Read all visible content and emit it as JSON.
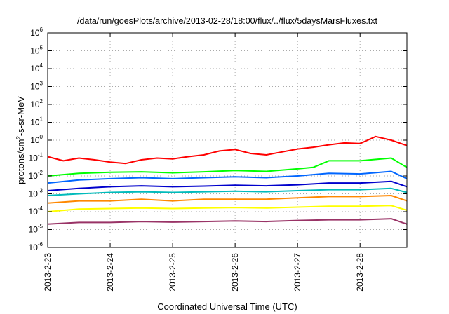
{
  "chart_data": {
    "type": "line",
    "title": "/data/run/goesPlots/archive/2013-02-28/18:00/flux/../flux/5daysMarsFluxes.txt",
    "xlabel": "Coordinated Universal Time (UTC)",
    "ylabel": {
      "base": "protons/cm",
      "sup": "2",
      "rest": "-s-sr-MeV"
    },
    "y_scale": "log",
    "ylim": [
      1e-06,
      1000000.0
    ],
    "y_ticks": [
      {
        "base": "10",
        "exp": "6",
        "value": 1000000.0
      },
      {
        "base": "10",
        "exp": "5",
        "value": 100000.0
      },
      {
        "base": "10",
        "exp": "4",
        "value": 10000.0
      },
      {
        "base": "10",
        "exp": "3",
        "value": 1000.0
      },
      {
        "base": "10",
        "exp": "2",
        "value": 100.0
      },
      {
        "base": "10",
        "exp": "1",
        "value": 10.0
      },
      {
        "base": "10",
        "exp": "0",
        "value": 1.0
      },
      {
        "base": "10",
        "exp": "-1",
        "value": 0.1
      },
      {
        "base": "10",
        "exp": "-2",
        "value": 0.01
      },
      {
        "base": "10",
        "exp": "-3",
        "value": 0.001
      },
      {
        "base": "10",
        "exp": "-4",
        "value": 0.0001
      },
      {
        "base": "10",
        "exp": "-5",
        "value": 1e-05
      },
      {
        "base": "10",
        "exp": "-6",
        "value": 1e-06
      }
    ],
    "x_ticks": [
      "2013-2-23",
      "2013-2-24",
      "2013-2-25",
      "2013-2-26",
      "2013-2-27",
      "2013-2-28"
    ],
    "xlim": [
      "2013-2-23",
      "2013-2-28 18:00"
    ],
    "grid": true,
    "legend": "none",
    "series": [
      {
        "color": "#ff0000",
        "x": [
          "2013-2-23 00:00",
          "2013-2-23 06:00",
          "2013-2-23 12:00",
          "2013-2-23 18:00",
          "2013-2-24 00:00",
          "2013-2-24 06:00",
          "2013-2-24 12:00",
          "2013-2-24 18:00",
          "2013-2-25 00:00",
          "2013-2-25 06:00",
          "2013-2-25 12:00",
          "2013-2-25 18:00",
          "2013-2-26 00:00",
          "2013-2-26 06:00",
          "2013-2-26 12:00",
          "2013-2-26 18:00",
          "2013-2-27 00:00",
          "2013-2-27 06:00",
          "2013-2-27 12:00",
          "2013-2-27 18:00",
          "2013-2-28 00:00",
          "2013-2-28 06:00",
          "2013-2-28 12:00",
          "2013-2-28 18:00"
        ],
        "y": [
          0.12,
          0.07,
          0.1,
          0.08,
          0.06,
          0.05,
          0.08,
          0.1,
          0.09,
          0.12,
          0.15,
          0.25,
          0.3,
          0.18,
          0.15,
          0.22,
          0.32,
          0.4,
          0.55,
          0.7,
          0.65,
          1.6,
          1.0,
          0.5
        ]
      },
      {
        "color": "#00ff00",
        "x": [
          "2013-2-23 00:00",
          "2013-2-23 12:00",
          "2013-2-24 00:00",
          "2013-2-24 12:00",
          "2013-2-25 00:00",
          "2013-2-25 12:00",
          "2013-2-26 00:00",
          "2013-2-26 12:00",
          "2013-2-27 00:00",
          "2013-2-27 06:00",
          "2013-2-27 12:00",
          "2013-2-28 00:00",
          "2013-2-28 12:00",
          "2013-2-28 18:00"
        ],
        "y": [
          0.01,
          0.014,
          0.016,
          0.017,
          0.015,
          0.017,
          0.02,
          0.018,
          0.025,
          0.03,
          0.07,
          0.07,
          0.1,
          0.03
        ]
      },
      {
        "color": "#0066ff",
        "x": [
          "2013-2-23 00:00",
          "2013-2-23 12:00",
          "2013-2-24 00:00",
          "2013-2-24 12:00",
          "2013-2-25 00:00",
          "2013-2-25 12:00",
          "2013-2-26 00:00",
          "2013-2-26 12:00",
          "2013-2-27 00:00",
          "2013-2-27 12:00",
          "2013-2-28 00:00",
          "2013-2-28 12:00",
          "2013-2-28 18:00"
        ],
        "y": [
          0.004,
          0.006,
          0.007,
          0.008,
          0.007,
          0.008,
          0.009,
          0.008,
          0.01,
          0.014,
          0.013,
          0.018,
          0.007
        ]
      },
      {
        "color": "#0000cc",
        "x": [
          "2013-2-23 00:00",
          "2013-2-23 12:00",
          "2013-2-24 00:00",
          "2013-2-24 12:00",
          "2013-2-25 00:00",
          "2013-2-25 12:00",
          "2013-2-26 00:00",
          "2013-2-26 12:00",
          "2013-2-27 00:00",
          "2013-2-27 12:00",
          "2013-2-28 00:00",
          "2013-2-28 12:00",
          "2013-2-28 18:00"
        ],
        "y": [
          0.0015,
          0.002,
          0.0025,
          0.0028,
          0.0025,
          0.0027,
          0.003,
          0.0028,
          0.0032,
          0.004,
          0.004,
          0.005,
          0.0025
        ]
      },
      {
        "color": "#00bbbb",
        "x": [
          "2013-2-23 00:00",
          "2013-2-23 12:00",
          "2013-2-24 00:00",
          "2013-2-24 12:00",
          "2013-2-25 00:00",
          "2013-2-25 12:00",
          "2013-2-26 00:00",
          "2013-2-26 12:00",
          "2013-2-27 00:00",
          "2013-2-27 12:00",
          "2013-2-28 00:00",
          "2013-2-28 12:00",
          "2013-2-28 18:00"
        ],
        "y": [
          0.0008,
          0.001,
          0.0012,
          0.0013,
          0.0012,
          0.0013,
          0.0014,
          0.0013,
          0.0015,
          0.0017,
          0.0017,
          0.002,
          0.0012
        ]
      },
      {
        "color": "#ff8800",
        "x": [
          "2013-2-23 00:00",
          "2013-2-23 12:00",
          "2013-2-24 00:00",
          "2013-2-24 12:00",
          "2013-2-25 00:00",
          "2013-2-25 12:00",
          "2013-2-26 00:00",
          "2013-2-26 12:00",
          "2013-2-27 00:00",
          "2013-2-27 12:00",
          "2013-2-28 00:00",
          "2013-2-28 12:00",
          "2013-2-28 18:00"
        ],
        "y": [
          0.0003,
          0.0004,
          0.0004,
          0.0005,
          0.0004,
          0.0005,
          0.0005,
          0.0005,
          0.0006,
          0.0007,
          0.0007,
          0.0008,
          0.0004
        ]
      },
      {
        "color": "#ffff00",
        "x": [
          "2013-2-23 00:00",
          "2013-2-23 12:00",
          "2013-2-24 00:00",
          "2013-2-24 12:00",
          "2013-2-25 00:00",
          "2013-2-25 12:00",
          "2013-2-26 00:00",
          "2013-2-26 12:00",
          "2013-2-27 00:00",
          "2013-2-27 12:00",
          "2013-2-28 00:00",
          "2013-2-28 12:00",
          "2013-2-28 18:00"
        ],
        "y": [
          0.0001,
          0.00014,
          0.00015,
          0.00016,
          0.00015,
          0.00016,
          0.00017,
          0.00016,
          0.00018,
          0.0002,
          0.0002,
          0.00022,
          0.00012
        ]
      },
      {
        "color": "#993366",
        "x": [
          "2013-2-23 00:00",
          "2013-2-23 12:00",
          "2013-2-24 00:00",
          "2013-2-24 12:00",
          "2013-2-25 00:00",
          "2013-2-25 12:00",
          "2013-2-26 00:00",
          "2013-2-26 12:00",
          "2013-2-27 00:00",
          "2013-2-27 12:00",
          "2013-2-28 00:00",
          "2013-2-28 12:00",
          "2013-2-28 18:00"
        ],
        "y": [
          2e-05,
          2.5e-05,
          2.5e-05,
          2.8e-05,
          2.6e-05,
          2.8e-05,
          3e-05,
          2.8e-05,
          3.2e-05,
          3.5e-05,
          3.5e-05,
          4e-05,
          2e-05
        ]
      }
    ]
  }
}
